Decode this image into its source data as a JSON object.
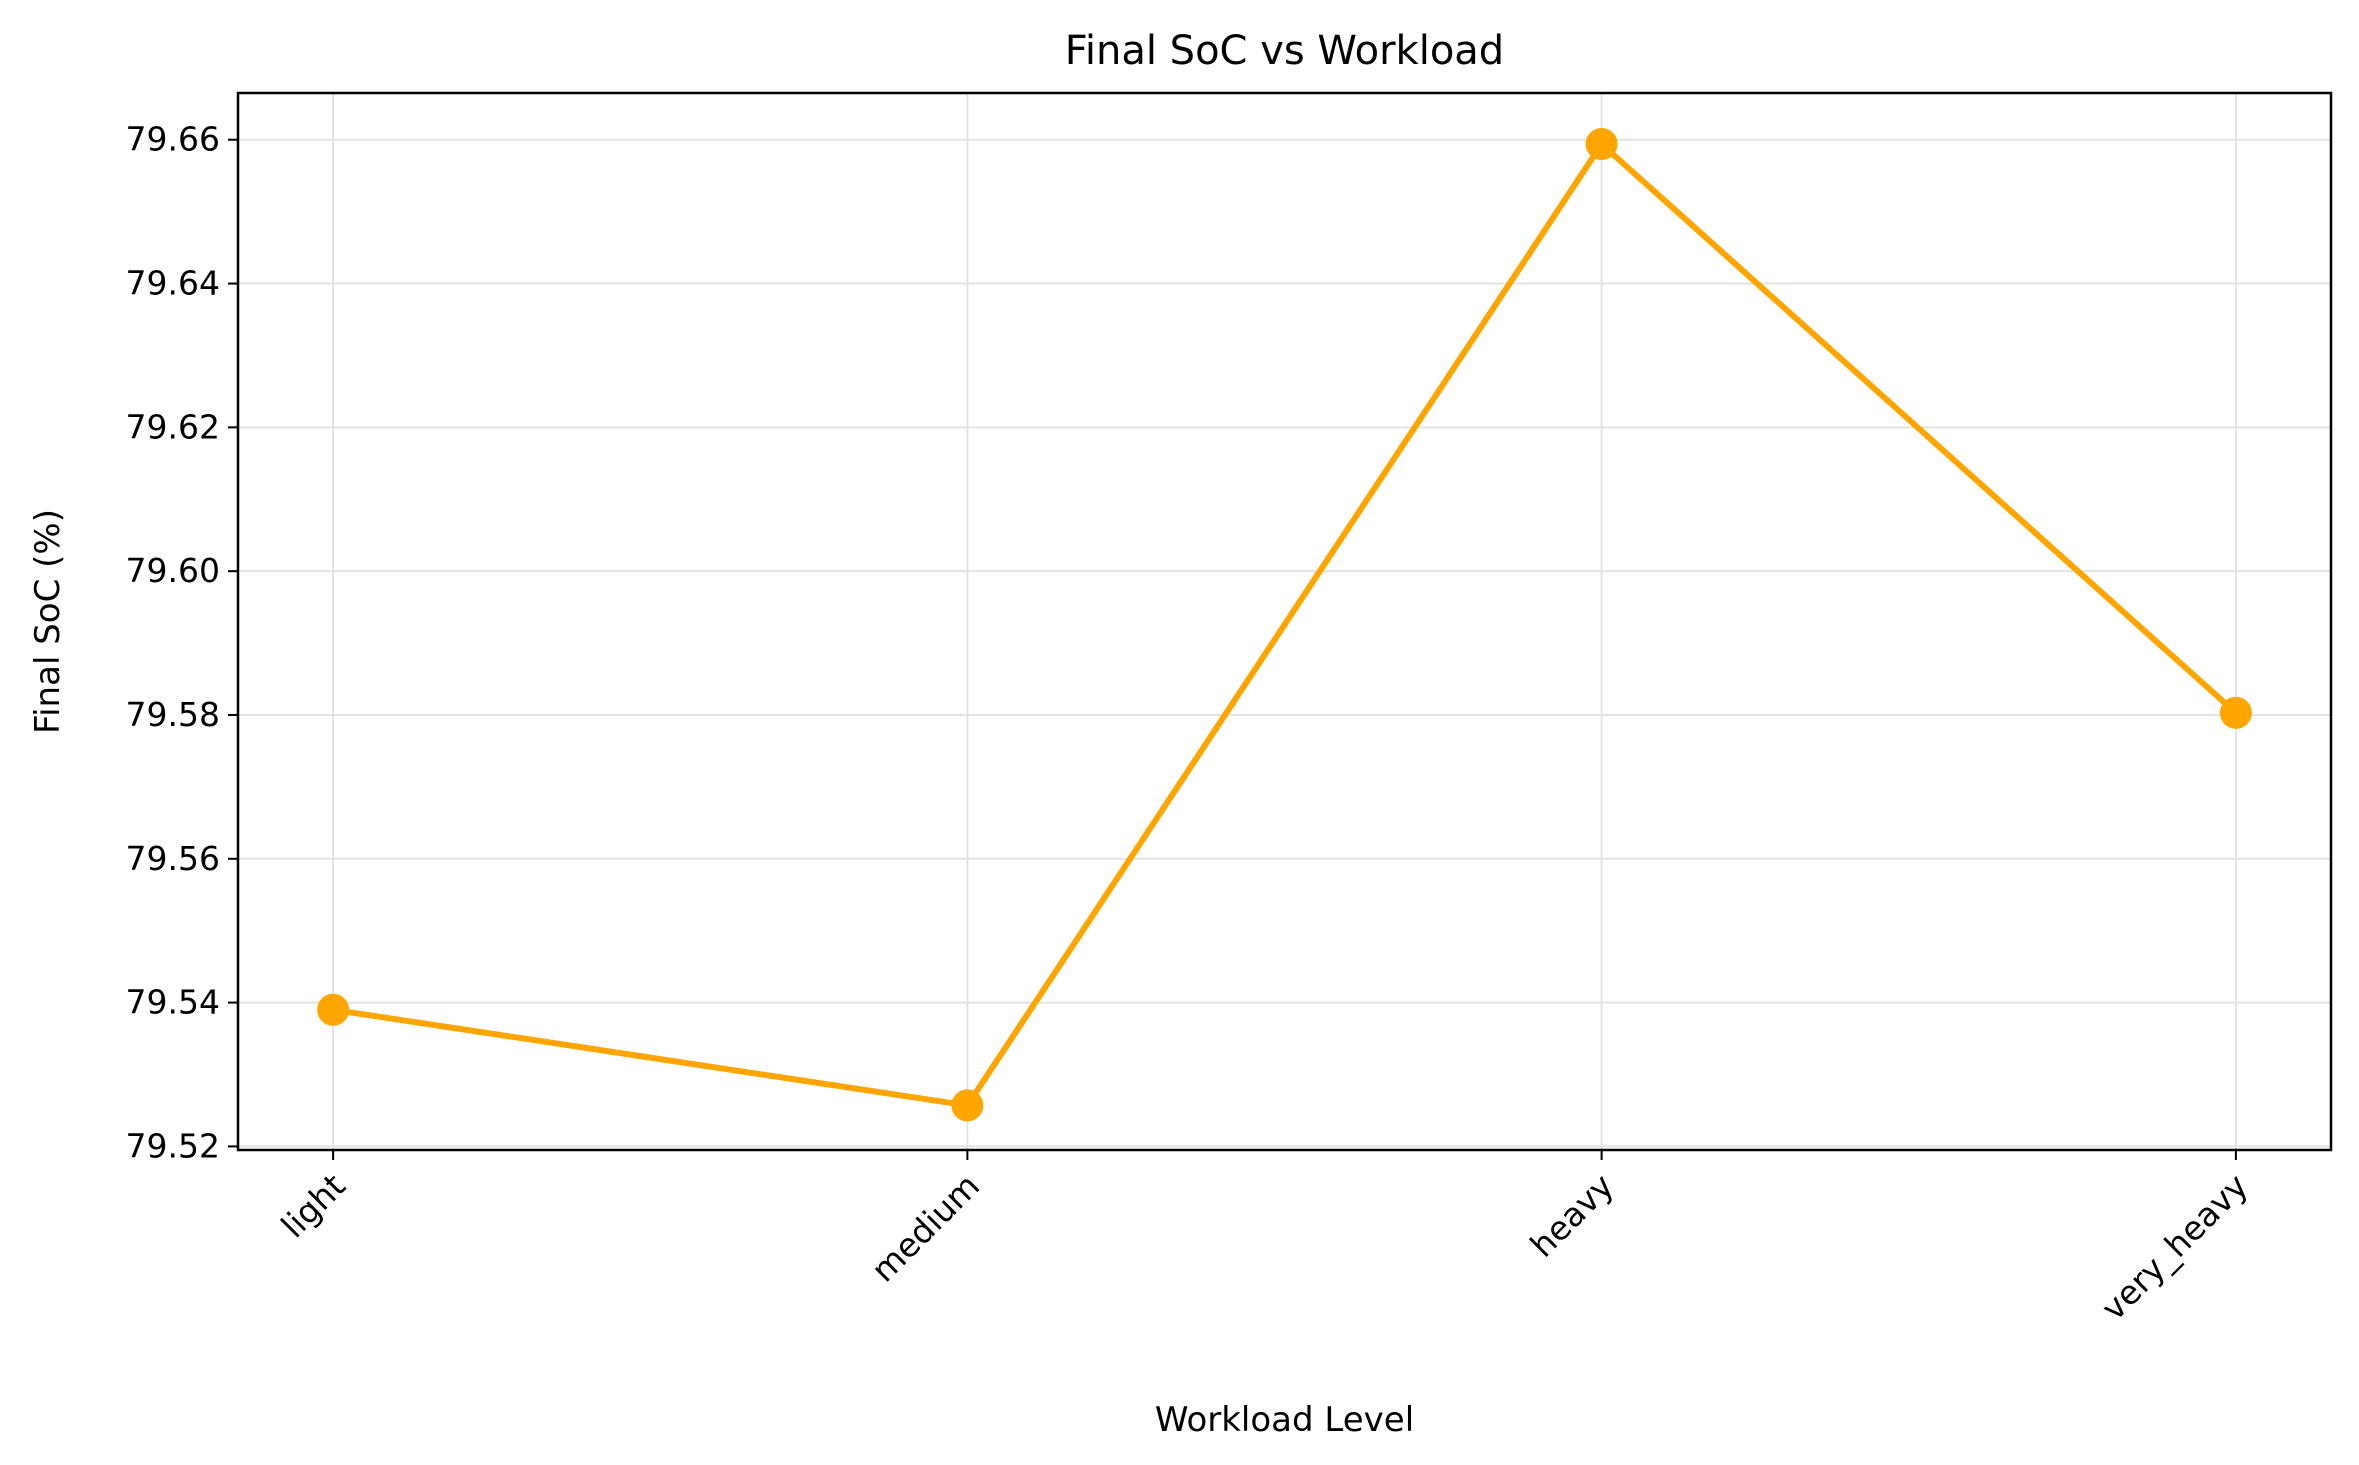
{
  "chart_data": {
    "type": "line",
    "title": "Final SoC vs Workload",
    "xlabel": "Workload Level",
    "ylabel": "Final SoC (%)",
    "categories": [
      "light",
      "medium",
      "heavy",
      "very_heavy"
    ],
    "series": [
      {
        "values": [
          79.539,
          79.5257,
          79.6594,
          79.5803
        ],
        "color": "#ffa500"
      }
    ],
    "ylim": [
      79.5195,
      79.6665
    ],
    "yticks": [
      79.52,
      79.54,
      79.56,
      79.58,
      79.6,
      79.62,
      79.64,
      79.66
    ],
    "ytick_labels": [
      "79.52",
      "79.54",
      "79.56",
      "79.58",
      "79.60",
      "79.62",
      "79.64",
      "79.66"
    ],
    "grid": true,
    "xtick_rotation": 45
  }
}
